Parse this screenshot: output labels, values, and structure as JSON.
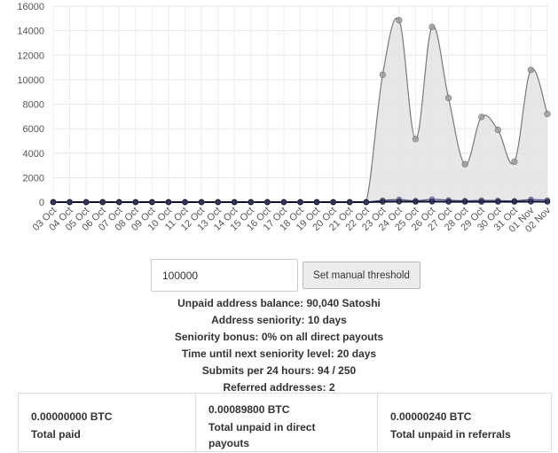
{
  "chart_data": {
    "type": "area",
    "y_ticks": [
      "0",
      "2000",
      "4000",
      "6000",
      "8000",
      "10000",
      "12000",
      "14000",
      "16000"
    ],
    "ylim": [
      0,
      16000
    ],
    "grid": true,
    "categories": [
      "03 Oct",
      "04 Oct",
      "05 Oct",
      "06 Oct",
      "07 Oct",
      "08 Oct",
      "09 Oct",
      "10 Oct",
      "11 Oct",
      "12 Oct",
      "13 Oct",
      "14 Oct",
      "15 Oct",
      "16 Oct",
      "17 Oct",
      "18 Oct",
      "19 Oct",
      "20 Oct",
      "21 Oct",
      "22 Oct",
      "23 Oct",
      "24 Oct",
      "25 Oct",
      "26 Oct",
      "27 Oct",
      "28 Oct",
      "29 Oct",
      "30 Oct",
      "31 Oct",
      "01 Nov",
      "02 Nov"
    ],
    "series": [
      {
        "values": [
          0,
          0,
          0,
          0,
          0,
          0,
          0,
          0,
          0,
          0,
          0,
          0,
          0,
          0,
          0,
          0,
          0,
          0,
          0,
          0,
          10400,
          14850,
          5150,
          14300,
          8500,
          3100,
          6950,
          5900,
          3300,
          10800,
          7200
        ],
        "line_color": "#7a7a7a",
        "fill_color": "#e3e3e3",
        "marker_color": "#999999"
      },
      {
        "values": [
          0,
          0,
          0,
          0,
          0,
          0,
          0,
          0,
          0,
          0,
          0,
          0,
          0,
          0,
          0,
          0,
          0,
          0,
          0,
          0,
          150,
          210,
          110,
          230,
          160,
          110,
          150,
          130,
          100,
          210,
          160
        ],
        "line_color": "#555577",
        "fill_color": "#9898d8",
        "marker_color": "#7777bb"
      },
      {
        "values": [
          0,
          0,
          0,
          0,
          0,
          0,
          0,
          0,
          0,
          0,
          0,
          0,
          0,
          0,
          0,
          0,
          0,
          0,
          0,
          0,
          30,
          40,
          30,
          40,
          30,
          30,
          30,
          30,
          30,
          40,
          30
        ],
        "line_color": "#111133",
        "fill_color": "#222255",
        "marker_color": "#1f1f3f"
      }
    ]
  },
  "threshold": {
    "value": "100000",
    "button_label": "Set manual threshold"
  },
  "stats": {
    "unpaid_balance": "Unpaid address balance: 90,040 Satoshi",
    "seniority": "Address seniority: 10 days",
    "seniority_bonus": "Seniority bonus: 0% on all direct payouts",
    "next_level": "Time until next seniority level: 20 days",
    "submits": "Submits per 24 hours: 94 / 250",
    "referred": "Referred addresses: 2"
  },
  "summary": [
    {
      "amount": "0.00000000 BTC",
      "label": "Total paid"
    },
    {
      "amount": "0.00089800 BTC",
      "label": "Total unpaid in direct payouts"
    },
    {
      "amount": "0.00000240 BTC",
      "label": "Total unpaid in referrals"
    }
  ]
}
